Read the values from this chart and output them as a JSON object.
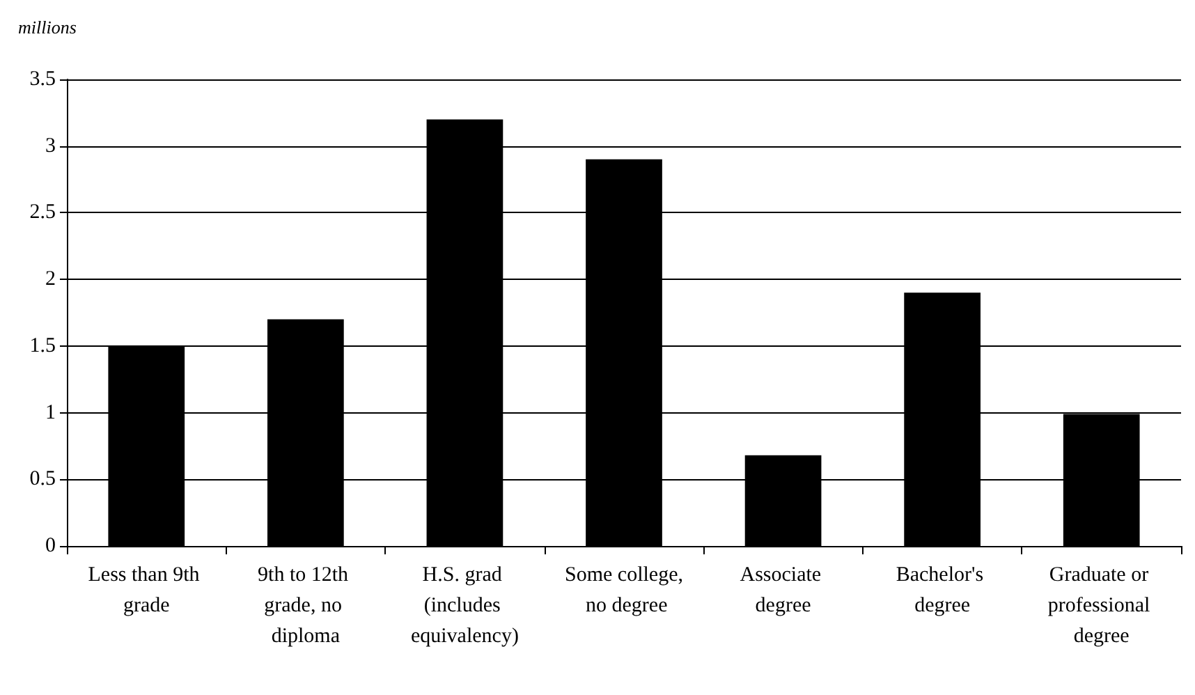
{
  "chart_data": {
    "type": "bar",
    "ylabel": "millions",
    "categories": [
      "Less than 9th grade",
      "9th to 12th grade, no diploma",
      "H.S. grad (includes equivalency)",
      "Some college, no degree",
      "Associate degree",
      "Bachelor's degree",
      "Graduate or professional degree"
    ],
    "values": [
      1.5,
      1.7,
      3.2,
      2.9,
      0.68,
      1.9,
      0.99
    ],
    "color": "#000000",
    "ylim": [
      0,
      3.5
    ],
    "yticks": [
      0,
      0.5,
      1,
      1.5,
      2,
      2.5,
      3,
      3.5
    ],
    "grid": "y"
  }
}
